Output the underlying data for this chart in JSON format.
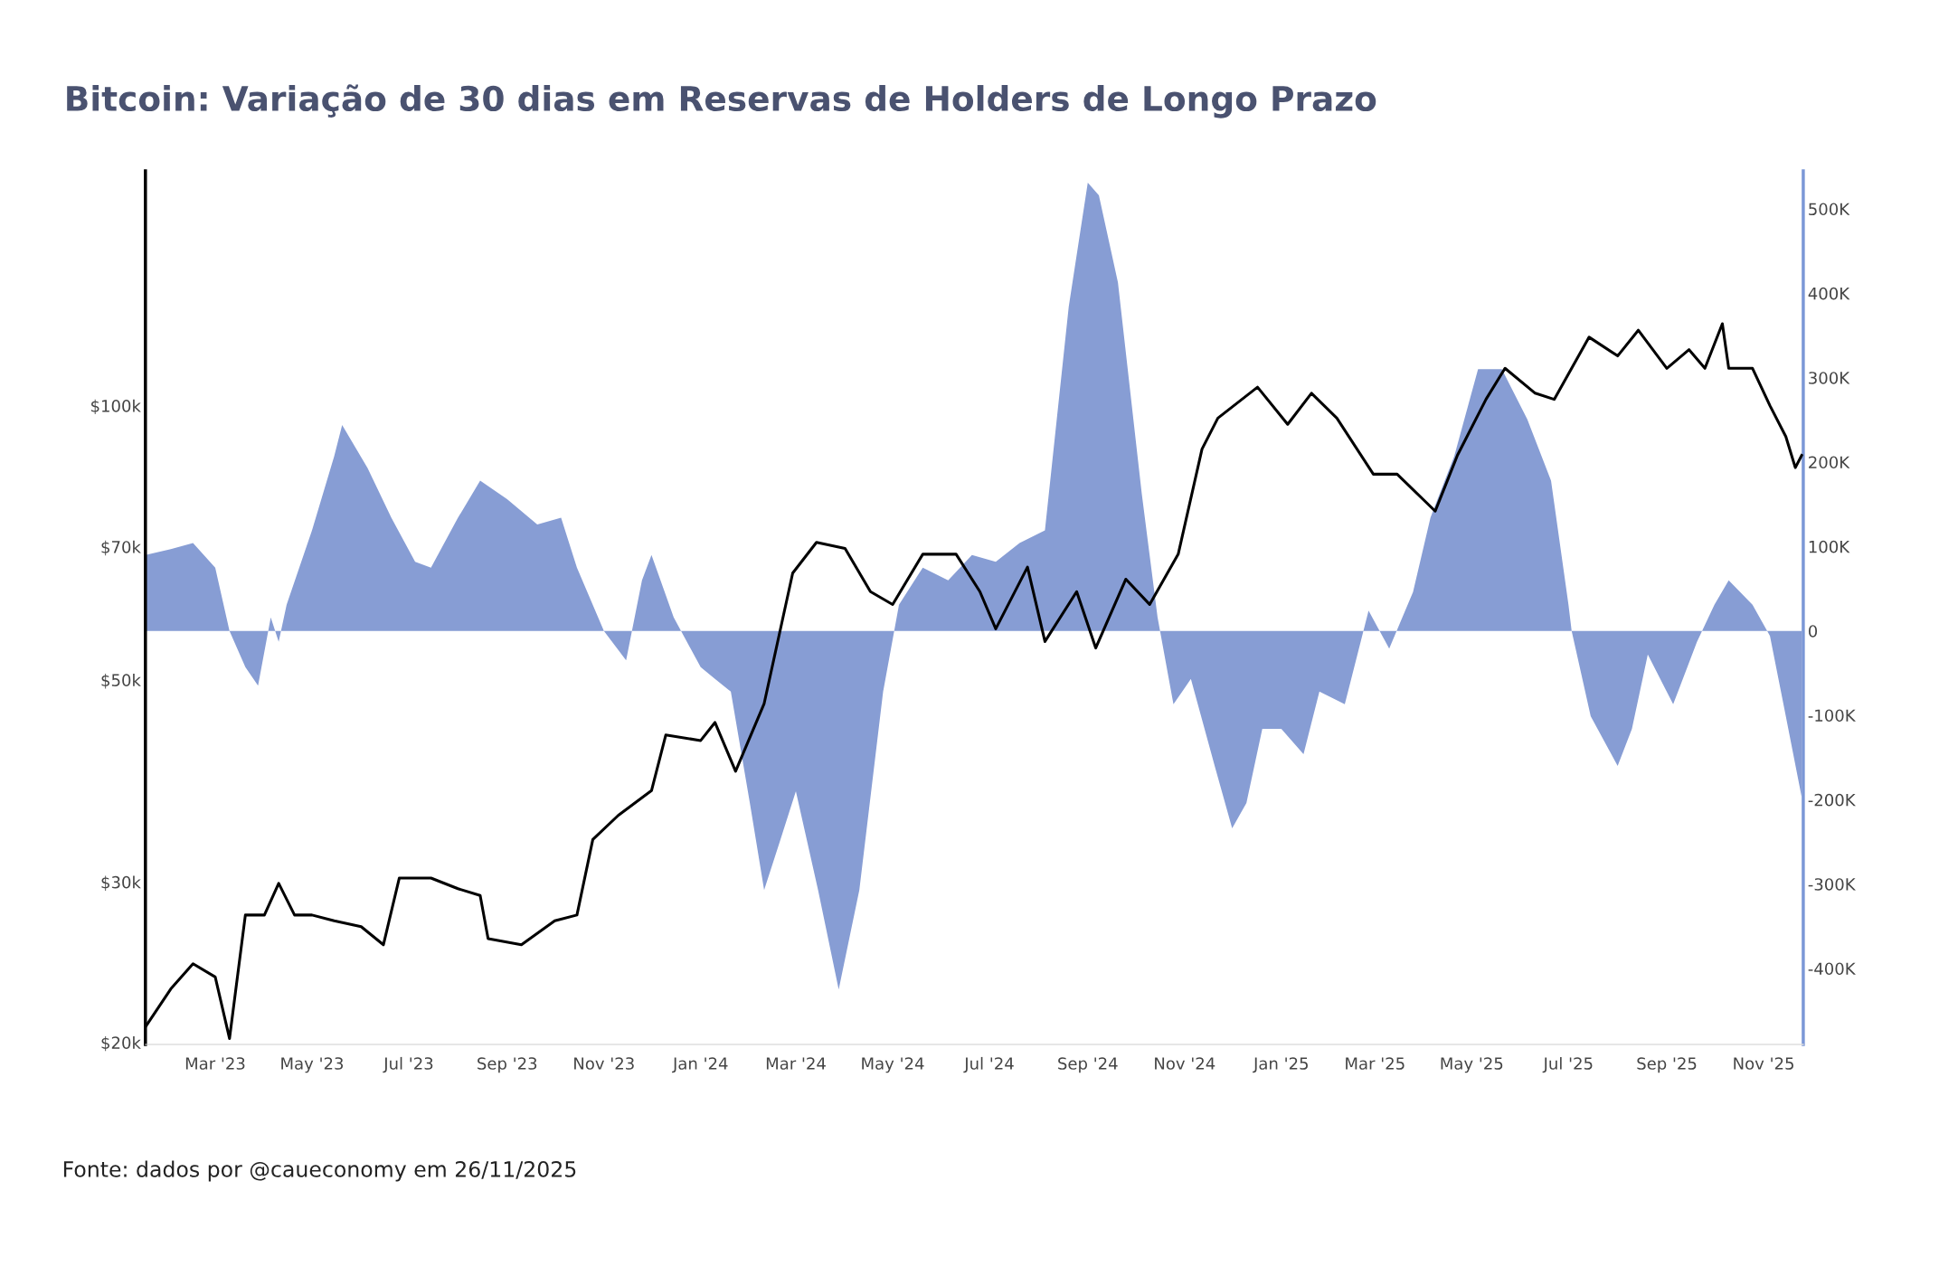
{
  "chart_data": {
    "type": "line",
    "title": "Bitcoin: Variação de 30 dias em Reservas de Holders de Longo Prazo",
    "annotations": [
      "Fonte: dados por @caueconomy em 26/11/2025"
    ],
    "xlim": [
      "2023-01-16",
      "2025-11-26"
    ],
    "xticks": [
      {
        "value": "2023-03-01",
        "label": "Mar '23"
      },
      {
        "value": "2023-05-01",
        "label": "May '23"
      },
      {
        "value": "2023-07-01",
        "label": "Jul '23"
      },
      {
        "value": "2023-09-01",
        "label": "Sep '23"
      },
      {
        "value": "2023-11-01",
        "label": "Nov '23"
      },
      {
        "value": "2024-01-01",
        "label": "Jan '24"
      },
      {
        "value": "2024-03-01",
        "label": "Mar '24"
      },
      {
        "value": "2024-05-01",
        "label": "May '24"
      },
      {
        "value": "2024-07-01",
        "label": "Jul '24"
      },
      {
        "value": "2024-09-01",
        "label": "Sep '24"
      },
      {
        "value": "2024-11-01",
        "label": "Nov '24"
      },
      {
        "value": "2025-01-01",
        "label": "Jan '25"
      },
      {
        "value": "2025-03-01",
        "label": "Mar '25"
      },
      {
        "value": "2025-05-01",
        "label": "May '25"
      },
      {
        "value": "2025-07-01",
        "label": "Jul '25"
      },
      {
        "value": "2025-09-01",
        "label": "Sep '25"
      },
      {
        "value": "2025-11-01",
        "label": "Nov '25"
      }
    ],
    "log": "y",
    "ylim": [
      19900,
      181000
    ],
    "yticks": [
      {
        "value": 20000,
        "label": "$20k"
      },
      {
        "value": 30000,
        "label": "$30k"
      },
      {
        "value": 50000,
        "label": "$50k"
      },
      {
        "value": 70000,
        "label": "$70k"
      },
      {
        "value": 100000,
        "label": "$100k"
      }
    ],
    "y2lim": [
      -490000,
      545000
    ],
    "y2ticks": [
      {
        "value": -400000,
        "label": "-400K"
      },
      {
        "value": -300000,
        "label": "-300K"
      },
      {
        "value": -200000,
        "label": "-200K"
      },
      {
        "value": -100000,
        "label": "-100K"
      },
      0,
      {
        "value": 100000,
        "label": "100K"
      },
      {
        "value": 200000,
        "label": "200K"
      },
      {
        "value": 300000,
        "label": "300K"
      },
      {
        "value": 400000,
        "label": "400K"
      },
      {
        "value": 500000,
        "label": "500K"
      }
    ],
    "grid": false,
    "legend": false,
    "series": [
      {
        "type": "area",
        "axis": "y2",
        "color": "#879dd4",
        "x": [
          "2023-01-16",
          "2023-02-01",
          "2023-02-15",
          "2023-03-01",
          "2023-03-10",
          "2023-03-20",
          "2023-03-28",
          "2023-04-05",
          "2023-04-10",
          "2023-04-15",
          "2023-05-01",
          "2023-05-15",
          "2023-05-20",
          "2023-06-05",
          "2023-06-20",
          "2023-07-05",
          "2023-07-15",
          "2023-08-01",
          "2023-08-15",
          "2023-09-01",
          "2023-09-20",
          "2023-10-05",
          "2023-10-15",
          "2023-11-01",
          "2023-11-15",
          "2023-11-25",
          "2023-12-01",
          "2023-12-15",
          "2024-01-01",
          "2024-01-10",
          "2024-01-20",
          "2024-02-01",
          "2024-02-10",
          "2024-02-20",
          "2024-03-01",
          "2024-03-15",
          "2024-03-28",
          "2024-04-10",
          "2024-04-25",
          "2024-05-05",
          "2024-05-20",
          "2024-06-05",
          "2024-06-20",
          "2024-07-05",
          "2024-07-20",
          "2024-08-05",
          "2024-08-20",
          "2024-09-01",
          "2024-09-08",
          "2024-09-20",
          "2024-10-05",
          "2024-10-15",
          "2024-10-25",
          "2024-11-05",
          "2024-11-20",
          "2024-12-01",
          "2024-12-10",
          "2024-12-20",
          "2025-01-01",
          "2025-01-15",
          "2025-01-25",
          "2025-02-10",
          "2025-02-25",
          "2025-03-10",
          "2025-03-25",
          "2025-04-05",
          "2025-04-20",
          "2025-05-05",
          "2025-05-20",
          "2025-06-05",
          "2025-06-20",
          "2025-07-01",
          "2025-07-03",
          "2025-07-15",
          "2025-08-01",
          "2025-08-10",
          "2025-08-20",
          "2025-09-05",
          "2025-09-20",
          "2025-10-01",
          "2025-10-10",
          "2025-10-25",
          "2025-11-05",
          "2025-11-15",
          "2025-11-25"
        ],
        "values": [
          90000,
          97000,
          104000,
          75000,
          0,
          -43000,
          -65000,
          16000,
          -13000,
          31000,
          119000,
          207000,
          244000,
          193000,
          134000,
          82000,
          75000,
          134000,
          178000,
          156000,
          126000,
          134000,
          75000,
          0,
          -35000,
          60000,
          90000,
          16000,
          -43000,
          -57000,
          -72000,
          -204000,
          -307000,
          -249000,
          -190000,
          -307000,
          -425000,
          -307000,
          -72000,
          31000,
          75000,
          60000,
          90000,
          82000,
          104000,
          119000,
          384000,
          531000,
          516000,
          413000,
          163000,
          16000,
          -87000,
          -57000,
          -160000,
          -234000,
          -204000,
          -116000,
          -116000,
          -146000,
          -72000,
          -87000,
          24000,
          -21000,
          46000,
          134000,
          207000,
          310000,
          310000,
          251000,
          178000,
          31000,
          0,
          -101000,
          -160000,
          -116000,
          -28000,
          -87000,
          -13000,
          31000,
          60000,
          31000,
          -6000,
          -101000,
          -197000
        ]
      },
      {
        "axis": "y",
        "color": "#000000",
        "x": [
          "2023-01-16",
          "2023-02-01",
          "2023-02-15",
          "2023-03-01",
          "2023-03-10",
          "2023-03-20",
          "2023-04-01",
          "2023-04-10",
          "2023-04-20",
          "2023-05-01",
          "2023-05-15",
          "2023-06-01",
          "2023-06-15",
          "2023-06-25",
          "2023-07-15",
          "2023-08-01",
          "2023-08-15",
          "2023-08-20",
          "2023-09-10",
          "2023-10-01",
          "2023-10-15",
          "2023-10-25",
          "2023-11-10",
          "2023-12-01",
          "2023-12-10",
          "2024-01-01",
          "2024-01-10",
          "2024-01-23",
          "2024-02-10",
          "2024-02-28",
          "2024-03-14",
          "2024-04-01",
          "2024-04-17",
          "2024-05-01",
          "2024-05-20",
          "2024-06-10",
          "2024-06-25",
          "2024-07-05",
          "2024-07-25",
          "2024-08-05",
          "2024-08-25",
          "2024-09-06",
          "2024-09-25",
          "2024-10-10",
          "2024-10-28",
          "2024-11-12",
          "2024-11-22",
          "2024-12-17",
          "2025-01-05",
          "2025-01-20",
          "2025-02-05",
          "2025-02-28",
          "2025-03-15",
          "2025-04-08",
          "2025-04-22",
          "2025-05-10",
          "2025-05-22",
          "2025-06-10",
          "2025-06-22",
          "2025-07-14",
          "2025-08-01",
          "2025-08-14",
          "2025-09-01",
          "2025-09-15",
          "2025-09-25",
          "2025-10-06",
          "2025-10-10",
          "2025-10-25",
          "2025-11-05",
          "2025-11-15",
          "2025-11-21",
          "2025-11-25"
        ],
        "values": [
          20800,
          22900,
          24400,
          23600,
          20200,
          27600,
          27600,
          29900,
          27600,
          27600,
          27200,
          26800,
          25600,
          30300,
          30300,
          29500,
          29000,
          26000,
          25600,
          27200,
          27600,
          33400,
          35500,
          37800,
          43500,
          42900,
          44900,
          39700,
          47100,
          65500,
          70800,
          69700,
          62500,
          60500,
          68700,
          68700,
          62500,
          56900,
          66500,
          55100,
          62500,
          54200,
          64500,
          60500,
          68700,
          89600,
          96900,
          104800,
          95400,
          103200,
          96900,
          84100,
          84100,
          76600,
          88200,
          101600,
          109900,
          103200,
          101600,
          118900,
          113400,
          121000,
          109900,
          115200,
          109900,
          123000,
          109900,
          109900,
          100000,
          92500,
          85500,
          88200
        ]
      }
    ]
  }
}
